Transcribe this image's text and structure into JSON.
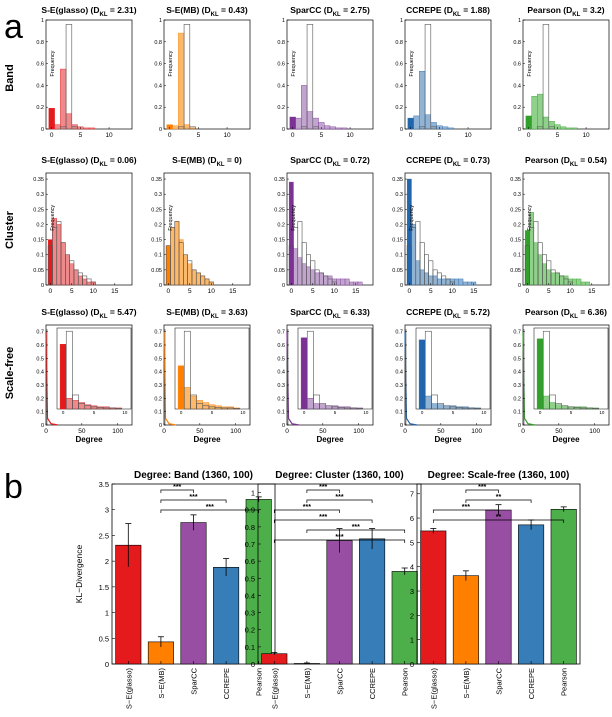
{
  "panel_labels": {
    "a": "a",
    "b": "b"
  },
  "row_labels": [
    "Band",
    "Cluster",
    "Scale-free"
  ],
  "axis_labels": {
    "frequency": "Frequency",
    "degree": "Degree",
    "kl": "KL−Divergence"
  },
  "methods": [
    "S−E(glasso)",
    "S−E(MB)",
    "SparCC",
    "CCREPE",
    "Pearson"
  ],
  "colors": {
    "dark": [
      "#e41a1c",
      "#ff7f00",
      "#7b3294",
      "#2166ac",
      "#33a02c"
    ],
    "light": [
      "#ef8a8c",
      "#fdb96b",
      "#c2a5cf",
      "#92b4d4",
      "#8fd18a"
    ],
    "bar": [
      "#e41a1c",
      "#ff7f00",
      "#984ea3",
      "#377eb8",
      "#4daf4a"
    ]
  },
  "hist_titles": {
    "band": [
      "S-E(glasso) (D_KL = 2.31)",
      "S-E(MB) (D_KL = 0.43)",
      "SparCC (D_KL = 2.75)",
      "CCREPE (D_KL = 1.88)",
      "Pearson (D_KL = 3.2)"
    ],
    "cluster": [
      "S-E(glasso) (D_KL = 0.06)",
      "S-E(MB) (D_KL = 0)",
      "SparCC (D_KL = 0.72)",
      "CCREPE (D_KL = 0.73)",
      "Pearson (D_KL = 0.54)"
    ],
    "scalefree": [
      "S-E(glasso) (D_KL = 5.47)",
      "S-E(MB) (D_KL = 3.63)",
      "SparCC (D_KL = 6.33)",
      "CCREPE (D_KL = 5.72)",
      "Pearson (D_KL = 6.36)"
    ]
  },
  "chart_data": [
    {
      "type": "bar",
      "panel": "a",
      "row": "Band",
      "subtype": "histogram",
      "xlabel": "",
      "ylabel": "Frequency",
      "xlim": [
        -1,
        14
      ],
      "ylim": [
        0,
        1
      ],
      "xticks": [
        0,
        5,
        10
      ],
      "yticks": [
        0,
        0.2,
        0.4,
        0.6,
        0.8,
        1
      ],
      "reference": [
        0,
        0,
        0.02,
        0.96,
        0.02
      ],
      "series": [
        {
          "name": "S-E(glasso)",
          "values": [
            0.19,
            0.04,
            0.55,
            0.14,
            0.04,
            0.02,
            0.01,
            0.01
          ]
        },
        {
          "name": "S-E(MB)",
          "values": [
            0.04,
            0.03,
            0.88,
            0.04,
            0.01
          ]
        },
        {
          "name": "SparCC",
          "values": [
            0.11,
            0.1,
            0.4,
            0.16,
            0.1,
            0.06,
            0.03,
            0.02,
            0.01,
            0.01
          ]
        },
        {
          "name": "CCREPE",
          "values": [
            0.1,
            0.12,
            0.53,
            0.13,
            0.06,
            0.03,
            0.02,
            0.01
          ]
        },
        {
          "name": "Pearson",
          "values": [
            0.12,
            0.3,
            0.32,
            0.11,
            0.07,
            0.04,
            0.02,
            0.01,
            0.01
          ]
        }
      ]
    },
    {
      "type": "bar",
      "panel": "a",
      "row": "Cluster",
      "subtype": "histogram",
      "xlabel": "",
      "ylabel": "Frequency",
      "xlim": [
        -1,
        19
      ],
      "ylim": [
        0,
        0.37
      ],
      "xticks": [
        0,
        5,
        10,
        15
      ],
      "yticks": [
        0,
        0.05,
        0.1,
        0.15,
        0.2,
        0.25,
        0.3,
        0.35
      ],
      "reference": [
        0.13,
        0.19,
        0.21,
        0.14,
        0.1,
        0.08,
        0.05,
        0.04,
        0.03,
        0.02,
        0.01
      ],
      "series": [
        {
          "name": "S-E(glasso)",
          "values": [
            0.15,
            0.22,
            0.2,
            0.14,
            0.1,
            0.07,
            0.05,
            0.03,
            0.02,
            0.01,
            0.01
          ]
        },
        {
          "name": "S-E(MB)",
          "values": [
            0.13,
            0.19,
            0.21,
            0.15,
            0.1,
            0.07,
            0.05,
            0.04,
            0.03,
            0.02,
            0.01
          ]
        },
        {
          "name": "SparCC",
          "values": [
            0.34,
            0.12,
            0.09,
            0.07,
            0.06,
            0.05,
            0.04,
            0.04,
            0.03,
            0.03,
            0.02,
            0.02,
            0.02,
            0.02,
            0.01,
            0.01,
            0.01
          ]
        },
        {
          "name": "CCREPE",
          "values": [
            0.35,
            0.2,
            0.08,
            0.05,
            0.04,
            0.03,
            0.03,
            0.02,
            0.02,
            0.02,
            0.02,
            0.02,
            0.02,
            0.01,
            0.01,
            0.01
          ]
        },
        {
          "name": "Pearson",
          "values": [
            0.18,
            0.24,
            0.14,
            0.1,
            0.07,
            0.05,
            0.04,
            0.04,
            0.03,
            0.03,
            0.02,
            0.02,
            0.02,
            0.01,
            0.01
          ]
        }
      ]
    },
    {
      "type": "bar",
      "panel": "a",
      "row": "Scale-free",
      "subtype": "histogram-with-inset",
      "xlabel": "Degree",
      "ylabel": "",
      "xlim": [
        0,
        120
      ],
      "ylim": [
        0,
        0.75
      ],
      "xticks": [
        0,
        50,
        100
      ],
      "yticks": [
        0,
        0.1,
        0.2,
        0.3,
        0.4,
        0.5,
        0.6,
        0.7
      ],
      "inset_xlim": [
        -1,
        11
      ],
      "inset_xticks": [
        0,
        5,
        10
      ],
      "reference": [
        0,
        0.72,
        0.13,
        0.05,
        0.03,
        0.02,
        0.015,
        0.01,
        0.01,
        0.005
      ],
      "series": [
        {
          "name": "S-E(glasso)",
          "values": [
            0.6,
            0.1,
            0.08,
            0.06,
            0.04,
            0.03,
            0.02,
            0.02,
            0.01,
            0.01
          ]
        },
        {
          "name": "S-E(MB)",
          "values": [
            0.4,
            0.2,
            0.12,
            0.08,
            0.06,
            0.04,
            0.03,
            0.02,
            0.02,
            0.01
          ]
        },
        {
          "name": "SparCC",
          "values": [
            0.66,
            0.1,
            0.05,
            0.04,
            0.03,
            0.03,
            0.02,
            0.02,
            0.01,
            0.01
          ]
        },
        {
          "name": "CCREPE",
          "values": [
            0.64,
            0.12,
            0.05,
            0.04,
            0.03,
            0.03,
            0.02,
            0.02,
            0.01,
            0.01
          ]
        },
        {
          "name": "Pearson",
          "values": [
            0.65,
            0.12,
            0.06,
            0.04,
            0.03,
            0.02,
            0.02,
            0.02,
            0.01,
            0.01
          ]
        }
      ]
    },
    {
      "type": "bar",
      "panel": "b",
      "title": "Degree: Band (1360, 100)",
      "categories": [
        "S−E(glasso)",
        "S−E(MB)",
        "SparCC",
        "CCREPE",
        "Pearson"
      ],
      "values": [
        2.31,
        0.43,
        2.75,
        1.88,
        3.2
      ],
      "errors": [
        0.42,
        0.1,
        0.15,
        0.17,
        0.05
      ],
      "ylabel": "KL−Divergence",
      "ylim": [
        0,
        3.5
      ],
      "yticks": [
        0,
        0.5,
        1,
        1.5,
        2,
        2.5,
        3,
        3.5
      ],
      "significance": [
        {
          "from": 1,
          "to": 2,
          "label": "***"
        },
        {
          "from": 1,
          "to": 3,
          "label": "***"
        },
        {
          "from": 1,
          "to": 4,
          "label": "***"
        }
      ]
    },
    {
      "type": "bar",
      "panel": "b",
      "title": "Degree: Cluster (1360, 100)",
      "categories": [
        "S−E(glasso)",
        "S−E(MB)",
        "SparCC",
        "CCREPE",
        "Pearson"
      ],
      "values": [
        0.06,
        0.003,
        0.72,
        0.73,
        0.54
      ],
      "errors": [
        0.007,
        0.003,
        0.07,
        0.06,
        0.02
      ],
      "ylim": [
        0,
        1.05
      ],
      "yticks": [
        0,
        0.1,
        0.2,
        0.3,
        0.4,
        0.5,
        0.6,
        0.7,
        0.8,
        0.9,
        1
      ],
      "significance": [
        {
          "from": 1,
          "to": 2,
          "label": "***"
        },
        {
          "from": 1,
          "to": 3,
          "label": "***"
        },
        {
          "from": 0,
          "to": 2,
          "label": "***"
        },
        {
          "from": 0,
          "to": 3,
          "label": "***"
        },
        {
          "from": 1,
          "to": 4,
          "label": "***"
        },
        {
          "from": 0,
          "to": 4,
          "label": "***"
        }
      ]
    },
    {
      "type": "bar",
      "panel": "b",
      "title": "Degree: Scale-free (1360, 100)",
      "categories": [
        "S−E(glasso)",
        "S−E(MB)",
        "SparCC",
        "CCREPE",
        "Pearson"
      ],
      "values": [
        5.47,
        3.63,
        6.33,
        5.72,
        6.36
      ],
      "errors": [
        0.1,
        0.2,
        0.22,
        0.2,
        0.1
      ],
      "ylim": [
        0,
        7.4
      ],
      "yticks": [
        0,
        1,
        2,
        3,
        4,
        5,
        6,
        7
      ],
      "significance": [
        {
          "from": 1,
          "to": 2,
          "label": "***"
        },
        {
          "from": 1,
          "to": 3,
          "label": "**"
        },
        {
          "from": 0,
          "to": 2,
          "label": "***"
        },
        {
          "from": 0,
          "to": 4,
          "label": "**"
        }
      ]
    }
  ]
}
